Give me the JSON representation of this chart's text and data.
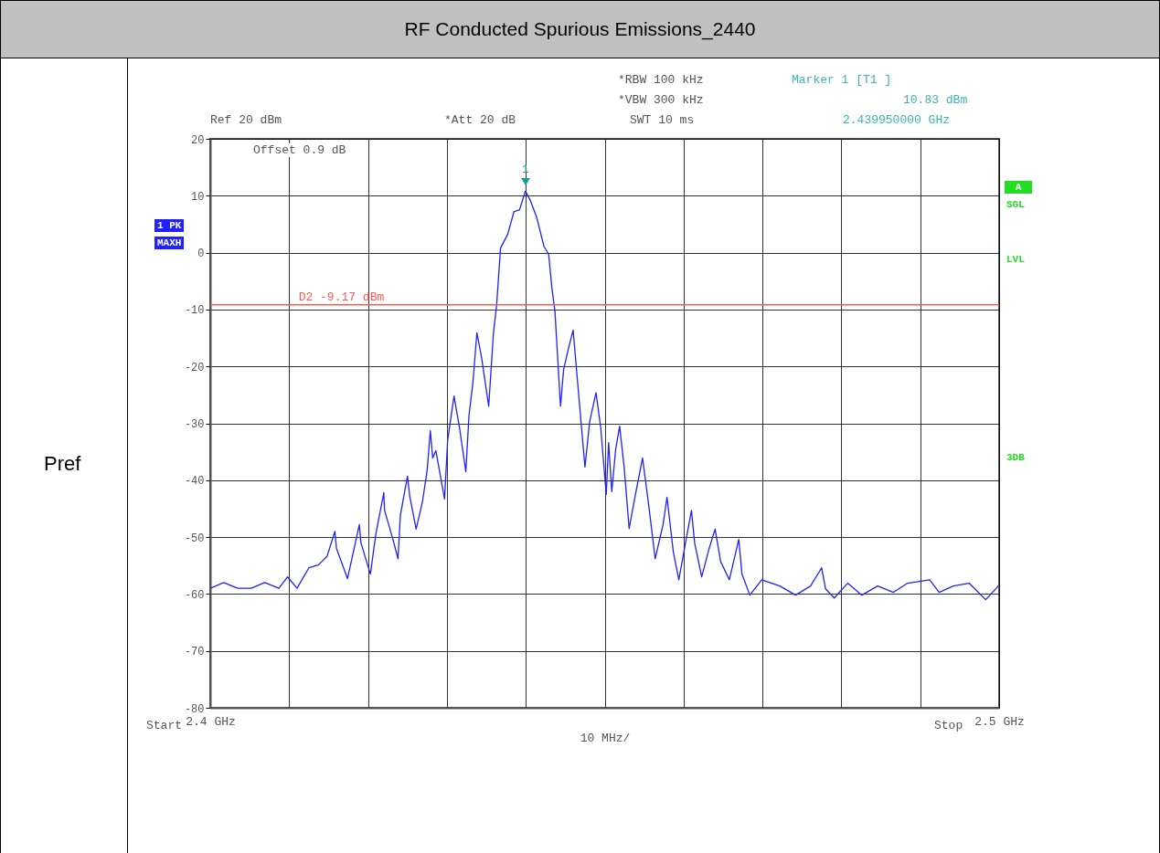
{
  "chart_data": {
    "type": "line",
    "title": "RF Conducted Spurious  Emissions_2440",
    "xlabel": "10 MHz/",
    "x": [
      2.4,
      2.4017,
      2.4035,
      2.4052,
      2.4069,
      2.4087,
      2.4098,
      2.411,
      2.4125,
      2.4137,
      2.4148,
      2.4158,
      2.416,
      2.4174,
      2.4189,
      2.4191,
      2.4203,
      2.421,
      2.422,
      2.4221,
      2.4232,
      2.4238,
      2.4241,
      2.425,
      2.4253,
      2.4261,
      2.4269,
      2.4275,
      2.4279,
      2.4282,
      2.4286,
      2.4297,
      2.4301,
      2.4309,
      2.4316,
      2.4324,
      2.4328,
      2.4333,
      2.4338,
      2.4344,
      2.4353,
      2.4359,
      2.4363,
      2.4368,
      2.4377,
      2.4385,
      2.4392,
      2.43995,
      2.4406,
      2.4414,
      2.4423,
      2.4429,
      2.4433,
      2.4437,
      2.4444,
      2.4448,
      2.4454,
      2.446,
      2.4466,
      2.4475,
      2.4481,
      2.4489,
      2.4495,
      2.4502,
      2.4505,
      2.4509,
      2.4514,
      2.4519,
      2.4525,
      2.4531,
      2.4539,
      2.4548,
      2.4556,
      2.4564,
      2.4574,
      2.4579,
      2.4587,
      2.4594,
      2.4603,
      2.461,
      2.4614,
      2.4623,
      2.4632,
      2.464,
      2.4647,
      2.4658,
      2.467,
      2.4674,
      2.4684,
      2.4699,
      2.4722,
      2.4742,
      2.4761,
      2.4775,
      2.478,
      2.4791,
      2.4808,
      2.4826,
      2.4846,
      2.4866,
      2.4884,
      2.4912,
      2.4924,
      2.4942,
      2.4962,
      2.4983,
      2.4999
    ],
    "series": [
      {
        "color": "#1f22ff",
        "values": [
          -59,
          -58,
          -59,
          -59,
          -58,
          -59,
          -57,
          -59,
          -55.4,
          -54.9,
          -53.4,
          -49,
          -52,
          -57.3,
          -47.8,
          -51,
          -56.5,
          -49.4,
          -42.2,
          -45.3,
          -50.6,
          -53.8,
          -46.2,
          -39.3,
          -42.9,
          -48.6,
          -43.8,
          -38.2,
          -31.3,
          -36.1,
          -34.8,
          -43.3,
          -32.9,
          -25.2,
          -30.8,
          -38.5,
          -28.6,
          -22.8,
          -14.1,
          -18.5,
          -27,
          -14.1,
          -9.3,
          0.8,
          3.2,
          7.2,
          7.5,
          10.8,
          9.1,
          6.1,
          1.1,
          -0.3,
          -6.1,
          -10.4,
          -27,
          -20.5,
          -16.9,
          -13.6,
          -23.3,
          -37.7,
          -29.7,
          -24.6,
          -30.8,
          -42.5,
          -33.4,
          -42,
          -34.5,
          -30.5,
          -38.2,
          -48.5,
          -42.5,
          -36.1,
          -44.6,
          -53.8,
          -47.8,
          -43,
          -52.6,
          -57.5,
          -50.6,
          -45.3,
          -51,
          -57,
          -52.2,
          -48.6,
          -54.3,
          -57.5,
          -50.4,
          -56.5,
          -60.2,
          -57.5,
          -58.6,
          -60.2,
          -58.6,
          -55.4,
          -59.1,
          -60.7,
          -58.1,
          -60.2,
          -58.6,
          -59.7,
          -58.1,
          -57.5,
          -59.7,
          -58.6,
          -58.1,
          -61,
          -58.6
        ]
      }
    ],
    "xlim": [
      2.4,
      2.5
    ],
    "xticks": [
      {
        "value": 2.4,
        "label": "2.4 GHz"
      },
      {
        "value": 2.41,
        "label": null
      },
      {
        "value": 2.42,
        "label": null
      },
      {
        "value": 2.43,
        "label": null
      },
      {
        "value": 2.44,
        "label": null
      },
      {
        "value": 2.45,
        "label": null
      },
      {
        "value": 2.46,
        "label": null
      },
      {
        "value": 2.47,
        "label": null
      },
      {
        "value": 2.48,
        "label": null
      },
      {
        "value": 2.49,
        "label": null
      },
      {
        "value": 2.5,
        "label": "2.5 GHz"
      }
    ],
    "ylim": [
      -80,
      20
    ],
    "yticks": [
      -80,
      -70,
      -60,
      -50,
      -40,
      -30,
      -20,
      -10,
      0,
      10,
      20
    ],
    "grid": true,
    "line_style": "solid",
    "legend": false,
    "ref_lines": [
      {
        "axis": "y",
        "value": -9.17,
        "label": "D2 -9.17 dBm",
        "color": "#ff5a50"
      }
    ],
    "annotations": [
      "Marker 1 [T1 ]",
      "10.83 dBm",
      "2.439950000 GHz",
      "*RBW 100 kHz",
      "*VBW 300 kHz",
      "SWT 10 ms",
      "Ref 20 dBm",
      "*Att 20 dB",
      "Offset 0.9 dB",
      "1 PK",
      "MAXH",
      "A",
      "SGL",
      "LVL",
      "3DB",
      "Pref",
      "Start",
      "Stop",
      {
        "text": "1",
        "x": 2.43995,
        "y": 10.83
      }
    ]
  }
}
